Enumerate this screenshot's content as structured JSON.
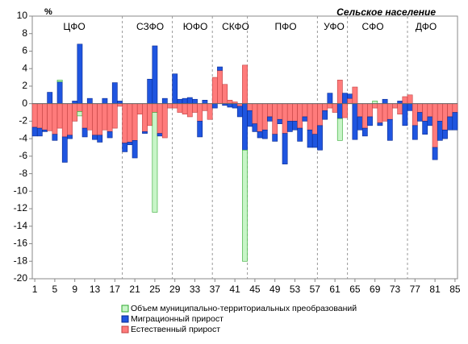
{
  "chart_data": {
    "type": "bar",
    "stacked": true,
    "title": "Сельское население",
    "y_unit": "%",
    "categories": [
      1,
      2,
      3,
      4,
      5,
      6,
      7,
      8,
      9,
      10,
      11,
      12,
      13,
      14,
      15,
      16,
      17,
      18,
      19,
      20,
      21,
      22,
      23,
      24,
      25,
      26,
      27,
      28,
      29,
      30,
      31,
      32,
      33,
      34,
      35,
      36,
      37,
      38,
      39,
      40,
      41,
      42,
      43,
      44,
      45,
      46,
      47,
      48,
      49,
      50,
      51,
      52,
      53,
      54,
      55,
      56,
      57,
      58,
      59,
      60,
      61,
      62,
      63,
      64,
      65,
      66,
      67,
      68,
      69,
      70,
      71,
      72,
      73,
      74,
      75,
      76,
      77,
      78,
      79,
      80,
      81,
      82,
      83,
      84,
      85
    ],
    "xticks": [
      1,
      5,
      9,
      13,
      17,
      21,
      25,
      29,
      33,
      37,
      41,
      45,
      49,
      53,
      57,
      61,
      65,
      69,
      73,
      77,
      81,
      85
    ],
    "ylim": [
      -20,
      10
    ],
    "yticks": [
      -20,
      -18,
      -16,
      -14,
      -12,
      -10,
      -8,
      -6,
      -4,
      -2,
      0,
      2,
      4,
      6,
      8,
      10
    ],
    "districts": [
      "ЦФО",
      "СЗФО",
      "ЮФО",
      "СКФО",
      "ПФО",
      "УФО",
      "СФО",
      "ДФО"
    ],
    "series": [
      {
        "name": "Естественный прирост",
        "color": "#ff7b7b",
        "stroke": "#c04040",
        "values": [
          -2.7,
          -2.8,
          -3.0,
          -3.1,
          -3.5,
          -2.8,
          -3.8,
          -3.6,
          -2.0,
          -0.9,
          -2.8,
          -3.0,
          -3.6,
          -3.6,
          -3.0,
          -3.2,
          -2.8,
          -0.3,
          -4.5,
          -4.4,
          -4.2,
          -1.2,
          -3.2,
          -2.5,
          -1.0,
          -3.4,
          -3.9,
          -0.5,
          -0.5,
          -1.0,
          -1.2,
          -1.5,
          -1.0,
          -2.0,
          -0.8,
          -1.8,
          3.0,
          3.8,
          2.2,
          0.4,
          0.2,
          -0.3,
          4.4,
          -0.8,
          -2.3,
          -3.2,
          -3.0,
          -1.5,
          -3.5,
          -1.8,
          -3.4,
          -2.0,
          -2.0,
          -2.8,
          -1.5,
          -3.0,
          -3.5,
          -2.5,
          -0.8,
          -0.5,
          -1.0,
          2.7,
          -1.6,
          0.6,
          1.9,
          -1.5,
          -2.8,
          -1.5,
          -0.5,
          -2.2,
          -2.0,
          -1.8,
          -0.5,
          -1.2,
          0.8,
          1.0,
          -2.5,
          -1.0,
          -2.0,
          -1.5,
          -5.0,
          -2.0,
          -3.0,
          -1.5,
          -1.0
        ]
      },
      {
        "name": "Миграционный  прирост",
        "color": "#1f55e0",
        "stroke": "#0a2a90",
        "values": [
          -1.0,
          -0.9,
          -0.2,
          1.3,
          -0.7,
          2.5,
          -2.9,
          -0.4,
          0.3,
          6.8,
          -1.0,
          0.6,
          -0.5,
          -0.8,
          0.6,
          -0.7,
          2.4,
          0.3,
          -1.0,
          -0.3,
          -2.0,
          0,
          -0.2,
          2.8,
          6.6,
          -0.3,
          0.6,
          0,
          3.4,
          0.5,
          0.6,
          0.7,
          0.5,
          -1.8,
          0.4,
          0,
          -0.5,
          0.4,
          -0.2,
          -0.4,
          -0.5,
          -1.2,
          -5.3,
          -1.8,
          -0.9,
          -0.7,
          -1.0,
          -0.5,
          -0.8,
          -0.5,
          -3.5,
          -1.2,
          -1.0,
          -1.5,
          -0.5,
          -2.0,
          -1.5,
          -2.8,
          -1.0,
          1.2,
          0,
          -1.7,
          1.2,
          0.5,
          -4.1,
          -1.5,
          -0.9,
          -1.0,
          0,
          -0.3,
          0.5,
          -2.4,
          0,
          0.3,
          -2.5,
          -0.8,
          -1.6,
          -1.0,
          -1.5,
          -1.0,
          -1.4,
          -2.2,
          -1.0,
          -1.5,
          -2.0
        ]
      },
      {
        "name": "Объем муниципально-территориальных преобразований",
        "color": "#c8f5c8",
        "stroke": "#2ea82e",
        "values": [
          0,
          0,
          0,
          0,
          0,
          0.2,
          0,
          0,
          0,
          -0.5,
          0,
          0,
          0,
          0,
          0,
          0,
          0,
          0,
          0,
          0,
          0,
          0,
          0,
          0,
          -11.4,
          0,
          0,
          0,
          0,
          0,
          0,
          0,
          0,
          0,
          0,
          0,
          0,
          0,
          0,
          0,
          0,
          0,
          -12.7,
          0,
          0,
          0,
          0,
          0,
          0,
          0,
          0,
          0,
          0,
          0,
          0,
          0,
          0,
          0,
          0,
          0,
          0,
          -2.5,
          0,
          0,
          0,
          0,
          0,
          0,
          0.3,
          0,
          0,
          0,
          0,
          0,
          0,
          0,
          0,
          0,
          0,
          0,
          0,
          0,
          0,
          0,
          0
        ]
      }
    ],
    "legend_order": [
      2,
      1,
      0
    ]
  }
}
